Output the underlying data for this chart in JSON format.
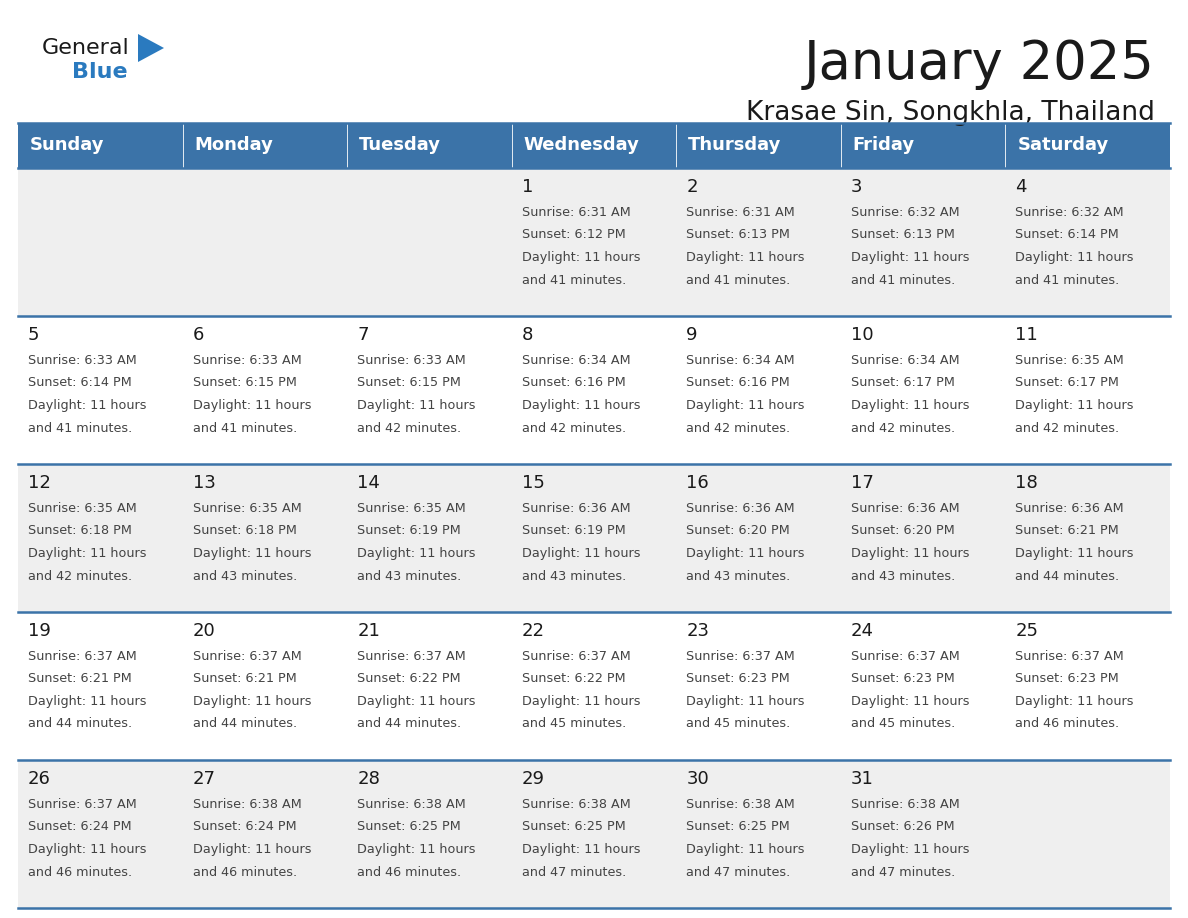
{
  "title": "January 2025",
  "subtitle": "Krasae Sin, Songkhla, Thailand",
  "days_of_week": [
    "Sunday",
    "Monday",
    "Tuesday",
    "Wednesday",
    "Thursday",
    "Friday",
    "Saturday"
  ],
  "header_bg_color": "#3b73a8",
  "header_text_color": "#ffffff",
  "cell_bg_odd": "#efefef",
  "cell_bg_even": "#ffffff",
  "line_color": "#3b73a8",
  "title_color": "#1a1a1a",
  "day_number_color": "#1a1a1a",
  "cell_text_color": "#444444",
  "logo_general_color": "#1a1a1a",
  "logo_blue_color": "#2a7abf",
  "logo_triangle_color": "#2a7abf",
  "calendar_data": [
    [
      null,
      null,
      null,
      {
        "day": 1,
        "sunrise": "6:31 AM",
        "sunset": "6:12 PM",
        "daylight_h": "11 hours",
        "daylight_m": "and 41 minutes."
      },
      {
        "day": 2,
        "sunrise": "6:31 AM",
        "sunset": "6:13 PM",
        "daylight_h": "11 hours",
        "daylight_m": "and 41 minutes."
      },
      {
        "day": 3,
        "sunrise": "6:32 AM",
        "sunset": "6:13 PM",
        "daylight_h": "11 hours",
        "daylight_m": "and 41 minutes."
      },
      {
        "day": 4,
        "sunrise": "6:32 AM",
        "sunset": "6:14 PM",
        "daylight_h": "11 hours",
        "daylight_m": "and 41 minutes."
      }
    ],
    [
      {
        "day": 5,
        "sunrise": "6:33 AM",
        "sunset": "6:14 PM",
        "daylight_h": "11 hours",
        "daylight_m": "and 41 minutes."
      },
      {
        "day": 6,
        "sunrise": "6:33 AM",
        "sunset": "6:15 PM",
        "daylight_h": "11 hours",
        "daylight_m": "and 41 minutes."
      },
      {
        "day": 7,
        "sunrise": "6:33 AM",
        "sunset": "6:15 PM",
        "daylight_h": "11 hours",
        "daylight_m": "and 42 minutes."
      },
      {
        "day": 8,
        "sunrise": "6:34 AM",
        "sunset": "6:16 PM",
        "daylight_h": "11 hours",
        "daylight_m": "and 42 minutes."
      },
      {
        "day": 9,
        "sunrise": "6:34 AM",
        "sunset": "6:16 PM",
        "daylight_h": "11 hours",
        "daylight_m": "and 42 minutes."
      },
      {
        "day": 10,
        "sunrise": "6:34 AM",
        "sunset": "6:17 PM",
        "daylight_h": "11 hours",
        "daylight_m": "and 42 minutes."
      },
      {
        "day": 11,
        "sunrise": "6:35 AM",
        "sunset": "6:17 PM",
        "daylight_h": "11 hours",
        "daylight_m": "and 42 minutes."
      }
    ],
    [
      {
        "day": 12,
        "sunrise": "6:35 AM",
        "sunset": "6:18 PM",
        "daylight_h": "11 hours",
        "daylight_m": "and 42 minutes."
      },
      {
        "day": 13,
        "sunrise": "6:35 AM",
        "sunset": "6:18 PM",
        "daylight_h": "11 hours",
        "daylight_m": "and 43 minutes."
      },
      {
        "day": 14,
        "sunrise": "6:35 AM",
        "sunset": "6:19 PM",
        "daylight_h": "11 hours",
        "daylight_m": "and 43 minutes."
      },
      {
        "day": 15,
        "sunrise": "6:36 AM",
        "sunset": "6:19 PM",
        "daylight_h": "11 hours",
        "daylight_m": "and 43 minutes."
      },
      {
        "day": 16,
        "sunrise": "6:36 AM",
        "sunset": "6:20 PM",
        "daylight_h": "11 hours",
        "daylight_m": "and 43 minutes."
      },
      {
        "day": 17,
        "sunrise": "6:36 AM",
        "sunset": "6:20 PM",
        "daylight_h": "11 hours",
        "daylight_m": "and 43 minutes."
      },
      {
        "day": 18,
        "sunrise": "6:36 AM",
        "sunset": "6:21 PM",
        "daylight_h": "11 hours",
        "daylight_m": "and 44 minutes."
      }
    ],
    [
      {
        "day": 19,
        "sunrise": "6:37 AM",
        "sunset": "6:21 PM",
        "daylight_h": "11 hours",
        "daylight_m": "and 44 minutes."
      },
      {
        "day": 20,
        "sunrise": "6:37 AM",
        "sunset": "6:21 PM",
        "daylight_h": "11 hours",
        "daylight_m": "and 44 minutes."
      },
      {
        "day": 21,
        "sunrise": "6:37 AM",
        "sunset": "6:22 PM",
        "daylight_h": "11 hours",
        "daylight_m": "and 44 minutes."
      },
      {
        "day": 22,
        "sunrise": "6:37 AM",
        "sunset": "6:22 PM",
        "daylight_h": "11 hours",
        "daylight_m": "and 45 minutes."
      },
      {
        "day": 23,
        "sunrise": "6:37 AM",
        "sunset": "6:23 PM",
        "daylight_h": "11 hours",
        "daylight_m": "and 45 minutes."
      },
      {
        "day": 24,
        "sunrise": "6:37 AM",
        "sunset": "6:23 PM",
        "daylight_h": "11 hours",
        "daylight_m": "and 45 minutes."
      },
      {
        "day": 25,
        "sunrise": "6:37 AM",
        "sunset": "6:23 PM",
        "daylight_h": "11 hours",
        "daylight_m": "and 46 minutes."
      }
    ],
    [
      {
        "day": 26,
        "sunrise": "6:37 AM",
        "sunset": "6:24 PM",
        "daylight_h": "11 hours",
        "daylight_m": "and 46 minutes."
      },
      {
        "day": 27,
        "sunrise": "6:38 AM",
        "sunset": "6:24 PM",
        "daylight_h": "11 hours",
        "daylight_m": "and 46 minutes."
      },
      {
        "day": 28,
        "sunrise": "6:38 AM",
        "sunset": "6:25 PM",
        "daylight_h": "11 hours",
        "daylight_m": "and 46 minutes."
      },
      {
        "day": 29,
        "sunrise": "6:38 AM",
        "sunset": "6:25 PM",
        "daylight_h": "11 hours",
        "daylight_m": "and 47 minutes."
      },
      {
        "day": 30,
        "sunrise": "6:38 AM",
        "sunset": "6:25 PM",
        "daylight_h": "11 hours",
        "daylight_m": "and 47 minutes."
      },
      {
        "day": 31,
        "sunrise": "6:38 AM",
        "sunset": "6:26 PM",
        "daylight_h": "11 hours",
        "daylight_m": "and 47 minutes."
      },
      null
    ]
  ]
}
